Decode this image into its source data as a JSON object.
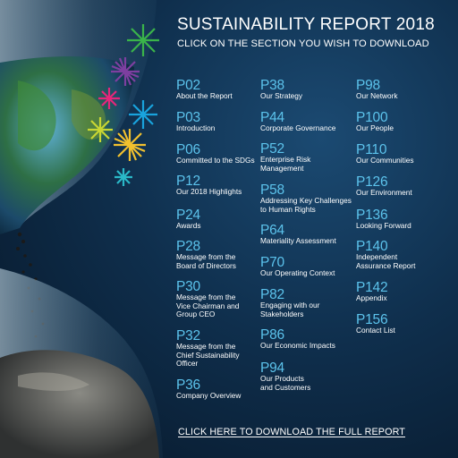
{
  "header": {
    "title": "SUSTAINABILITY REPORT 2018",
    "subtitle": "CLICK ON THE SECTION YOU WISH TO DOWNLOAD"
  },
  "columns": [
    [
      {
        "page": "P02",
        "label": "About the Report"
      },
      {
        "page": "P03",
        "label": "Introduction"
      },
      {
        "page": "P06",
        "label": "Committed to the SDGs"
      },
      {
        "page": "P12",
        "label": "Our 2018 Highlights"
      },
      {
        "page": "P24",
        "label": "Awards"
      },
      {
        "page": "P28",
        "label": "Message from the\nBoard of Directors"
      },
      {
        "page": "P30",
        "label": "Message from the\nVice Chairman and\nGroup CEO"
      },
      {
        "page": "P32",
        "label": "Message from the\nChief Sustainability\nOfficer"
      },
      {
        "page": "P36",
        "label": "Company Overview"
      }
    ],
    [
      {
        "page": "P38",
        "label": "Our Strategy"
      },
      {
        "page": "P44",
        "label": "Corporate Governance"
      },
      {
        "page": "P52",
        "label": "Enterprise Risk\nManagement"
      },
      {
        "page": "P58",
        "label": "Addressing Key Challenges\nto Human Rights"
      },
      {
        "page": "P64",
        "label": "Materiality Assessment"
      },
      {
        "page": "P70",
        "label": "Our Operating Context"
      },
      {
        "page": "P82",
        "label": "Engaging with our\nStakeholders"
      },
      {
        "page": "P86",
        "label": "Our Economic Impacts"
      },
      {
        "page": "P94",
        "label": "Our Products\nand Customers"
      }
    ],
    [
      {
        "page": "P98",
        "label": "Our Network"
      },
      {
        "page": "P100",
        "label": "Our People"
      },
      {
        "page": "P110",
        "label": "Our Communities"
      },
      {
        "page": "P126",
        "label": "Our Environment"
      },
      {
        "page": "P136",
        "label": "Looking Forward"
      },
      {
        "page": "P140",
        "label": "Independent\nAssurance Report"
      },
      {
        "page": "P142",
        "label": "Appendix"
      },
      {
        "page": "P156",
        "label": "Contact List"
      }
    ]
  ],
  "footer": {
    "download_label": "CLICK HERE TO DOWNLOAD THE FULL REPORT"
  },
  "colors": {
    "page_number": "#5cc3ec",
    "text": "#ffffff",
    "background": "#0f2f4d"
  }
}
